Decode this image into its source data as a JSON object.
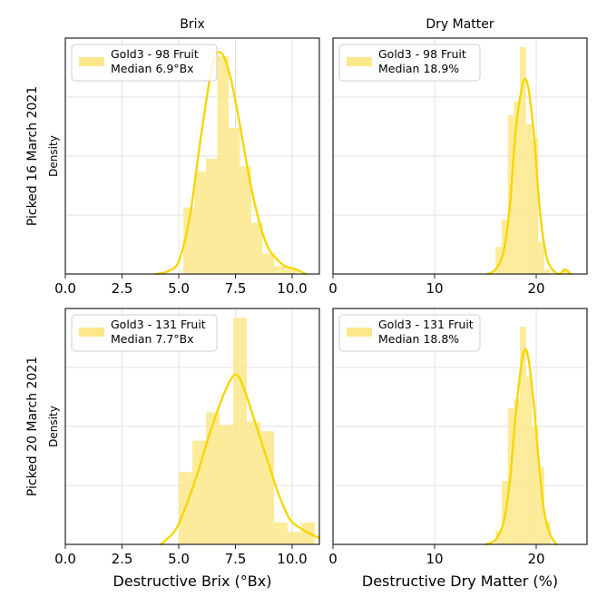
{
  "colors": {
    "accent": "#f7d600",
    "bar": "#fce88a",
    "grid": "#e2e2e2",
    "frame": "#222222"
  },
  "chart_data": [
    {
      "type": "histogram",
      "title": "Brix",
      "row_label": "Picked 16 March 2021",
      "ylabel": "Density",
      "xlabel": "",
      "xlim": [
        0,
        11.2
      ],
      "xticks": [
        0,
        2.5,
        5,
        7.5,
        10
      ],
      "xtick_labels": [
        "0.0",
        "2.5",
        "5.0",
        "7.5",
        "10.0"
      ],
      "ylim": [
        0,
        0.92
      ],
      "legend": {
        "line1": "Gold3 - 98 Fruit",
        "line2": "Median 6.9°Bx",
        "position": "top-left"
      },
      "bins": [
        [
          5.2,
          5.7,
          0.26
        ],
        [
          5.7,
          6.2,
          0.4
        ],
        [
          6.2,
          6.7,
          0.45
        ],
        [
          6.7,
          7.2,
          0.85
        ],
        [
          7.2,
          7.7,
          0.57
        ],
        [
          7.7,
          8.2,
          0.42
        ],
        [
          8.2,
          8.7,
          0.2
        ],
        [
          8.7,
          9.2,
          0.08
        ],
        [
          9.2,
          9.7,
          0.03
        ],
        [
          9.7,
          10.2,
          0.02
        ]
      ],
      "kde": [
        [
          4.0,
          0.0
        ],
        [
          4.5,
          0.01
        ],
        [
          5.0,
          0.05
        ],
        [
          5.5,
          0.23
        ],
        [
          6.0,
          0.55
        ],
        [
          6.5,
          0.82
        ],
        [
          6.9,
          0.86
        ],
        [
          7.3,
          0.76
        ],
        [
          7.7,
          0.58
        ],
        [
          8.1,
          0.38
        ],
        [
          8.5,
          0.22
        ],
        [
          8.9,
          0.11
        ],
        [
          9.3,
          0.06
        ],
        [
          9.7,
          0.03
        ],
        [
          10.1,
          0.02
        ],
        [
          10.6,
          0.0
        ]
      ]
    },
    {
      "type": "histogram",
      "title": "Dry Matter",
      "row_label": "",
      "ylabel": "",
      "xlabel": "",
      "xlim": [
        0,
        25
      ],
      "xticks": [
        0,
        10,
        20
      ],
      "xtick_labels": [
        "0",
        "10",
        "20"
      ],
      "ylim": [
        0,
        0.52
      ],
      "legend": {
        "line1": "Gold3 - 98 Fruit",
        "line2": "Median 18.9%",
        "position": "top-left"
      },
      "bins": [
        [
          16.0,
          16.6,
          0.06
        ],
        [
          16.6,
          17.2,
          0.12
        ],
        [
          17.2,
          17.8,
          0.35
        ],
        [
          17.8,
          18.4,
          0.38
        ],
        [
          18.4,
          19.0,
          0.5
        ],
        [
          19.0,
          19.6,
          0.33
        ],
        [
          19.6,
          20.2,
          0.3
        ],
        [
          20.2,
          20.8,
          0.07
        ],
        [
          20.8,
          21.4,
          0.01
        ],
        [
          22.6,
          23.2,
          0.01
        ]
      ],
      "kde": [
        [
          15.2,
          0.0
        ],
        [
          16.0,
          0.01
        ],
        [
          16.8,
          0.05
        ],
        [
          17.4,
          0.15
        ],
        [
          18.0,
          0.32
        ],
        [
          18.5,
          0.4
        ],
        [
          18.9,
          0.43
        ],
        [
          19.3,
          0.4
        ],
        [
          19.8,
          0.3
        ],
        [
          20.4,
          0.13
        ],
        [
          21.0,
          0.04
        ],
        [
          21.6,
          0.01
        ],
        [
          22.3,
          0.0
        ],
        [
          22.8,
          0.01
        ],
        [
          23.4,
          0.0
        ]
      ]
    },
    {
      "type": "histogram",
      "title": "",
      "row_label": "Picked 20 March 2021",
      "ylabel": "Density",
      "xlabel": "Destructive Brix (°Bx)",
      "xlim": [
        0,
        11.2
      ],
      "xticks": [
        0,
        2.5,
        5,
        7.5,
        10
      ],
      "xtick_labels": [
        "0.0",
        "2.5",
        "5.0",
        "7.5",
        "10.0"
      ],
      "ylim": [
        0,
        0.75
      ],
      "legend": {
        "line1": "Gold3 - 131 Fruit",
        "line2": "Median 7.7°Bx",
        "position": "top-left"
      },
      "bins": [
        [
          5.0,
          5.6,
          0.23
        ],
        [
          5.6,
          6.2,
          0.33
        ],
        [
          6.2,
          6.8,
          0.42
        ],
        [
          6.8,
          7.4,
          0.38
        ],
        [
          7.4,
          8.0,
          0.72
        ],
        [
          8.0,
          8.6,
          0.39
        ],
        [
          8.6,
          9.2,
          0.36
        ],
        [
          9.2,
          9.8,
          0.07
        ],
        [
          9.8,
          10.4,
          0.04
        ],
        [
          10.4,
          11.0,
          0.07
        ]
      ],
      "kde": [
        [
          4.2,
          0.0
        ],
        [
          4.8,
          0.04
        ],
        [
          5.2,
          0.1
        ],
        [
          5.8,
          0.22
        ],
        [
          6.4,
          0.36
        ],
        [
          7.0,
          0.48
        ],
        [
          7.5,
          0.54
        ],
        [
          7.9,
          0.49
        ],
        [
          8.4,
          0.38
        ],
        [
          8.9,
          0.27
        ],
        [
          9.4,
          0.16
        ],
        [
          9.9,
          0.08
        ],
        [
          10.4,
          0.05
        ],
        [
          10.9,
          0.03
        ],
        [
          11.2,
          0.02
        ]
      ]
    },
    {
      "type": "histogram",
      "title": "",
      "row_label": "",
      "ylabel": "",
      "xlabel": "Destructive Dry Matter (%)",
      "xlim": [
        0,
        25
      ],
      "xticks": [
        0,
        10,
        20
      ],
      "xtick_labels": [
        "0",
        "10",
        "20"
      ],
      "ylim": [
        0,
        0.52
      ],
      "legend": {
        "line1": "Gold3 - 131 Fruit",
        "line2": "Median 18.8%",
        "position": "top-left"
      },
      "bins": [
        [
          16.0,
          16.6,
          0.03
        ],
        [
          16.6,
          17.2,
          0.14
        ],
        [
          17.2,
          17.8,
          0.3
        ],
        [
          17.8,
          18.4,
          0.32
        ],
        [
          18.4,
          19.0,
          0.48
        ],
        [
          19.0,
          19.6,
          0.37
        ],
        [
          19.6,
          20.2,
          0.26
        ],
        [
          20.2,
          20.8,
          0.17
        ],
        [
          20.8,
          21.4,
          0.05
        ]
      ],
      "kde": [
        [
          15.0,
          0.0
        ],
        [
          16.0,
          0.01
        ],
        [
          16.8,
          0.05
        ],
        [
          17.4,
          0.14
        ],
        [
          18.0,
          0.29
        ],
        [
          18.5,
          0.39
        ],
        [
          18.9,
          0.43
        ],
        [
          19.3,
          0.4
        ],
        [
          19.8,
          0.3
        ],
        [
          20.3,
          0.17
        ],
        [
          20.8,
          0.07
        ],
        [
          21.4,
          0.02
        ],
        [
          22.0,
          0.0
        ]
      ]
    }
  ]
}
